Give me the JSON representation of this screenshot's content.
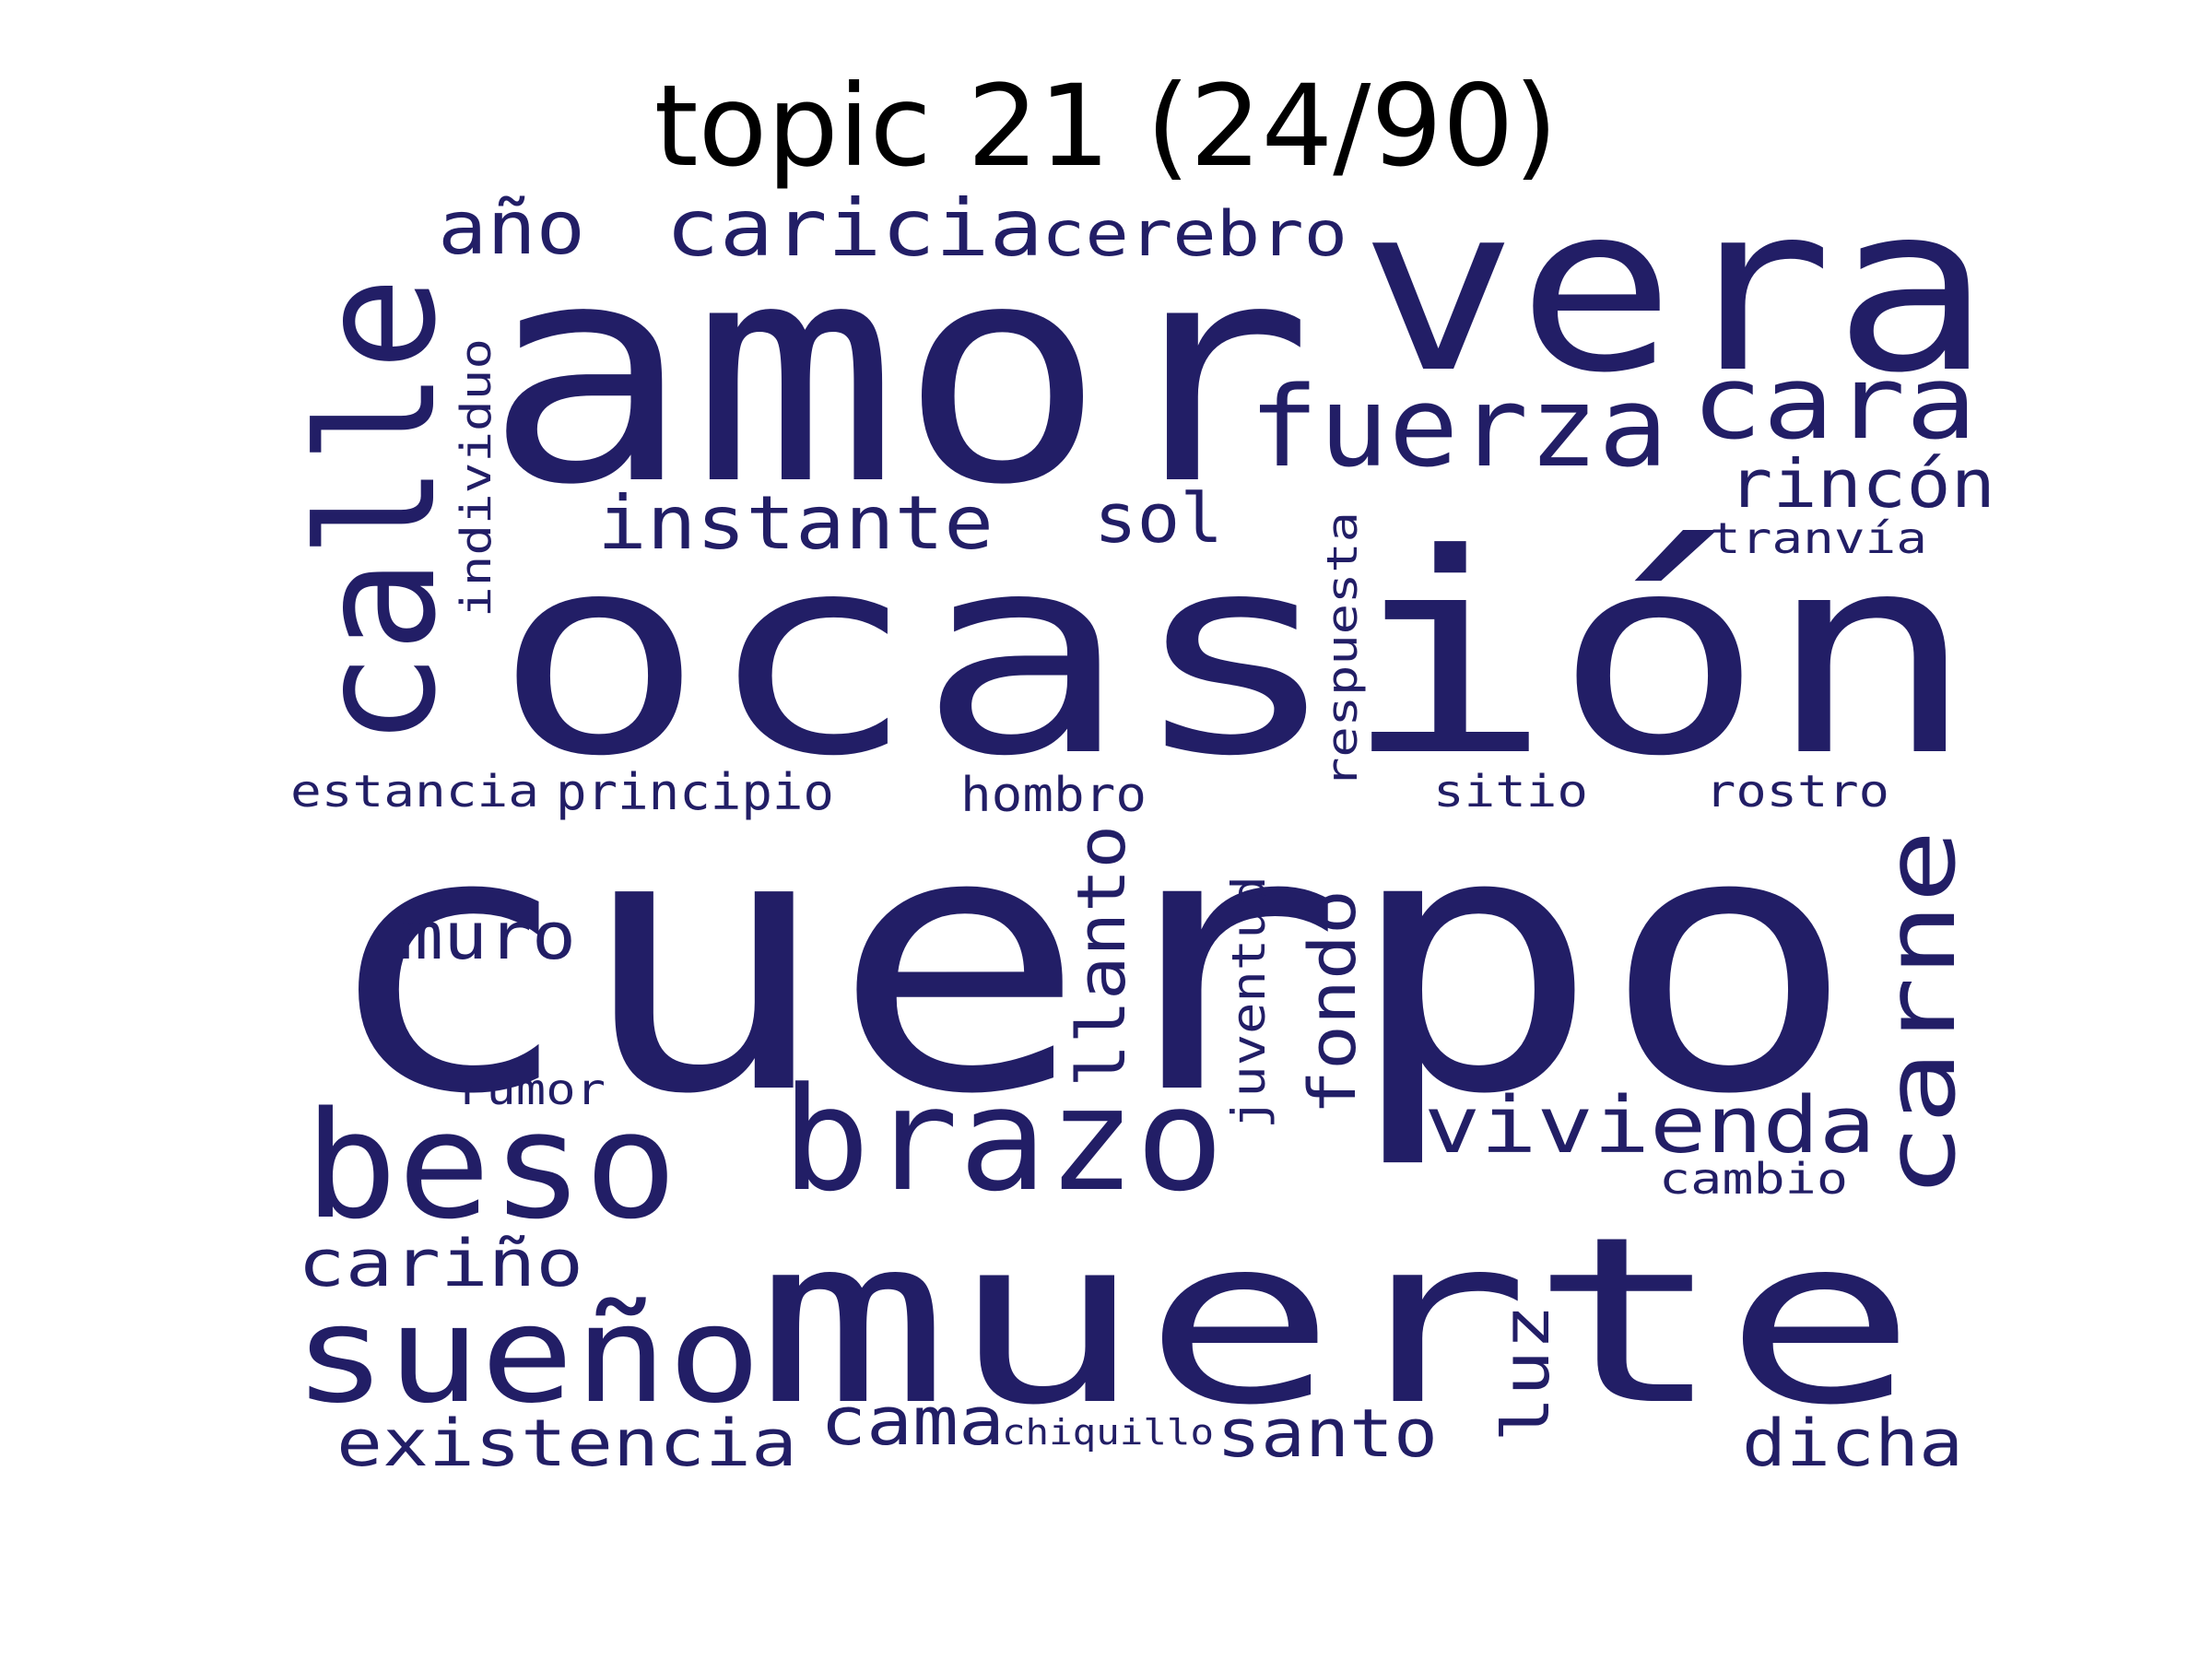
{
  "title": "topic 21 (24/90)",
  "word_color": "#221e66",
  "words": [
    {
      "id": "cuerpo",
      "text": "cuerpo"
    },
    {
      "id": "amor",
      "text": "amor"
    },
    {
      "id": "ocasion",
      "text": "ocasión"
    },
    {
      "id": "vera",
      "text": "vera"
    },
    {
      "id": "muerte",
      "text": "muerte"
    },
    {
      "id": "calle",
      "text": "calle"
    },
    {
      "id": "beso",
      "text": "beso"
    },
    {
      "id": "sueno",
      "text": "sueño"
    },
    {
      "id": "brazo",
      "text": "brazo"
    },
    {
      "id": "fuerza",
      "text": "fuerza"
    },
    {
      "id": "cara",
      "text": "cara"
    },
    {
      "id": "carne",
      "text": "carne"
    },
    {
      "id": "caricia",
      "text": "caricia"
    },
    {
      "id": "cerebro",
      "text": "cerebro"
    },
    {
      "id": "ano",
      "text": "año"
    },
    {
      "id": "instante",
      "text": "instante"
    },
    {
      "id": "sol",
      "text": "sol"
    },
    {
      "id": "rincon",
      "text": "rincón"
    },
    {
      "id": "tranvia",
      "text": "tranvía"
    },
    {
      "id": "individuo",
      "text": "individuo"
    },
    {
      "id": "respuesta",
      "text": "respuesta"
    },
    {
      "id": "estancia",
      "text": "estancia"
    },
    {
      "id": "principio",
      "text": "principio"
    },
    {
      "id": "hombro",
      "text": "hombro"
    },
    {
      "id": "sitio",
      "text": "sitio"
    },
    {
      "id": "rostro",
      "text": "rostro"
    },
    {
      "id": "muro",
      "text": "muro"
    },
    {
      "id": "llanto",
      "text": "llanto"
    },
    {
      "id": "juventud",
      "text": "juventud"
    },
    {
      "id": "fondo",
      "text": "fondo"
    },
    {
      "id": "vivienda",
      "text": "vivienda"
    },
    {
      "id": "rumor",
      "text": "rumor"
    },
    {
      "id": "cambio",
      "text": "cambio"
    },
    {
      "id": "carino",
      "text": "cariño"
    },
    {
      "id": "existencia",
      "text": "existencia"
    },
    {
      "id": "cama",
      "text": "cama"
    },
    {
      "id": "chiquillo",
      "text": "chiquillo"
    },
    {
      "id": "santo",
      "text": "santo"
    },
    {
      "id": "luz",
      "text": "luz"
    },
    {
      "id": "dicha",
      "text": "dicha"
    }
  ]
}
